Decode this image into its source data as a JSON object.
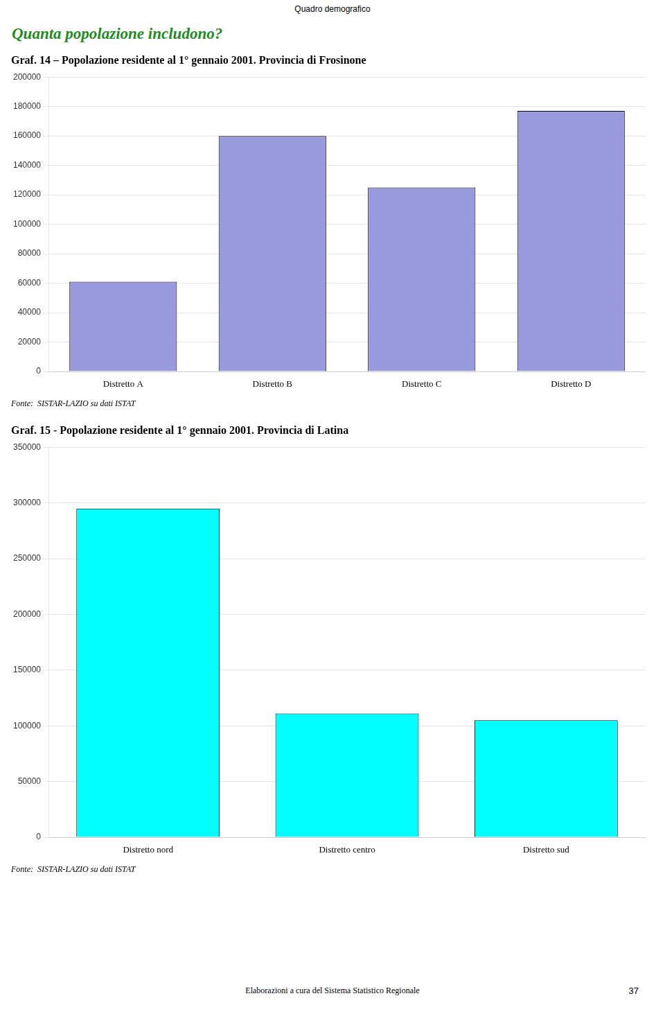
{
  "title": "Quadro demografico",
  "subtitle": "Quanta popolazione includono?",
  "annotations": [
    "Elaborazioni a cura del Sistema Statistico Regionale",
    "37"
  ],
  "chart_data": [
    {
      "type": "bar",
      "title": "Graf. 14 – Popolazione residente al 1° gennaio 2001. Provincia di Frosinone",
      "categories": [
        "Distretto A",
        "Distretto B",
        "Distretto C",
        "Distretto D"
      ],
      "values": [
        61000,
        160000,
        125000,
        177000
      ],
      "color": "#9999DD",
      "ylim": [
        0,
        200000
      ],
      "yticks": [
        0,
        20000,
        40000,
        60000,
        80000,
        100000,
        120000,
        140000,
        160000,
        180000,
        200000
      ],
      "grid": true,
      "annotations": [
        "Fonte:  SISTAR-LAZIO su dati ISTAT"
      ]
    },
    {
      "type": "bar",
      "title": "Graf. 15 - Popolazione residente al 1° gennaio 2001. Provincia di Latina",
      "categories": [
        "Distretto nord",
        "Distretto centro",
        "Distretto sud"
      ],
      "values": [
        295000,
        111000,
        105000
      ],
      "color": "#00FFFF",
      "ylim": [
        0,
        350000
      ],
      "yticks": [
        0,
        50000,
        100000,
        150000,
        200000,
        250000,
        300000,
        350000
      ],
      "grid": true,
      "annotations": [
        "Fonte:  SISTAR-LAZIO su dati ISTAT"
      ]
    }
  ]
}
